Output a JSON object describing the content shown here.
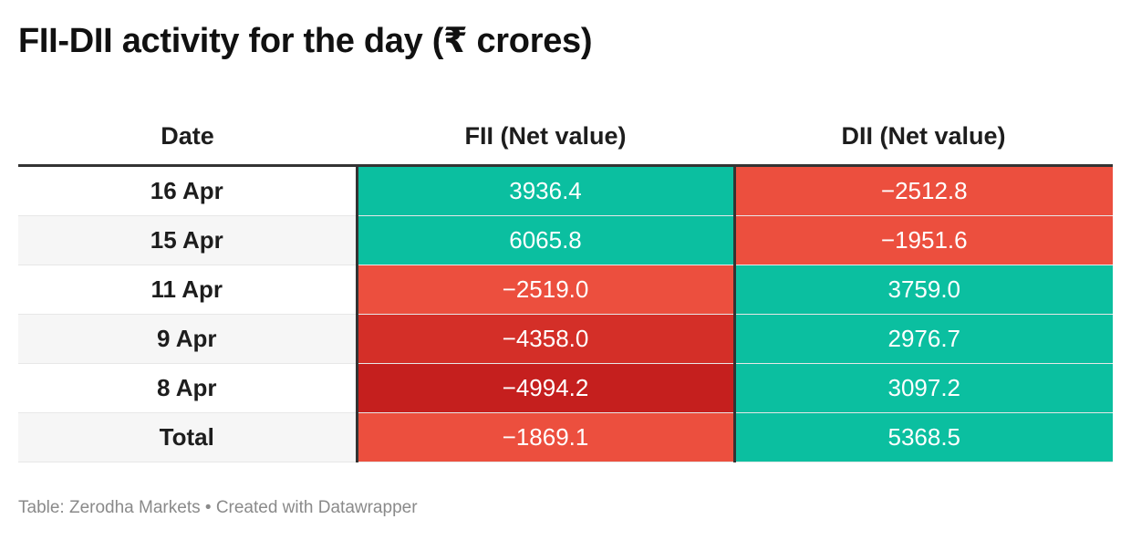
{
  "title": "FII-DII activity for the day (₹ crores)",
  "footer": {
    "source": "Table: Zerodha Markets",
    "separator": "•",
    "credit": "Created with Datawrapper"
  },
  "colors": {
    "positive": "#0bbfa0",
    "negative_light": "#ec4f3e",
    "negative_mid": "#d42f28",
    "negative_dark": "#c51f1e"
  },
  "chart_data": {
    "type": "table",
    "columns": [
      "Date",
      "FII (Net value)",
      "DII (Net value)"
    ],
    "rows": [
      {
        "date": "16 Apr",
        "fii": "3936.4",
        "dii": "−2512.8",
        "fii_value": 3936.4,
        "dii_value": -2512.8
      },
      {
        "date": "15 Apr",
        "fii": "6065.8",
        "dii": "−1951.6",
        "fii_value": 6065.8,
        "dii_value": -1951.6
      },
      {
        "date": "11 Apr",
        "fii": "−2519.0",
        "dii": "3759.0",
        "fii_value": -2519.0,
        "dii_value": 3759.0
      },
      {
        "date": "9 Apr",
        "fii": "−4358.0",
        "dii": "2976.7",
        "fii_value": -4358.0,
        "dii_value": 2976.7
      },
      {
        "date": "8 Apr",
        "fii": "−4994.2",
        "dii": "3097.2",
        "fii_value": -4994.2,
        "dii_value": 3097.2
      },
      {
        "date": "Total",
        "fii": "−1869.1",
        "dii": "5368.5",
        "fii_value": -1869.1,
        "dii_value": 5368.5
      }
    ]
  }
}
